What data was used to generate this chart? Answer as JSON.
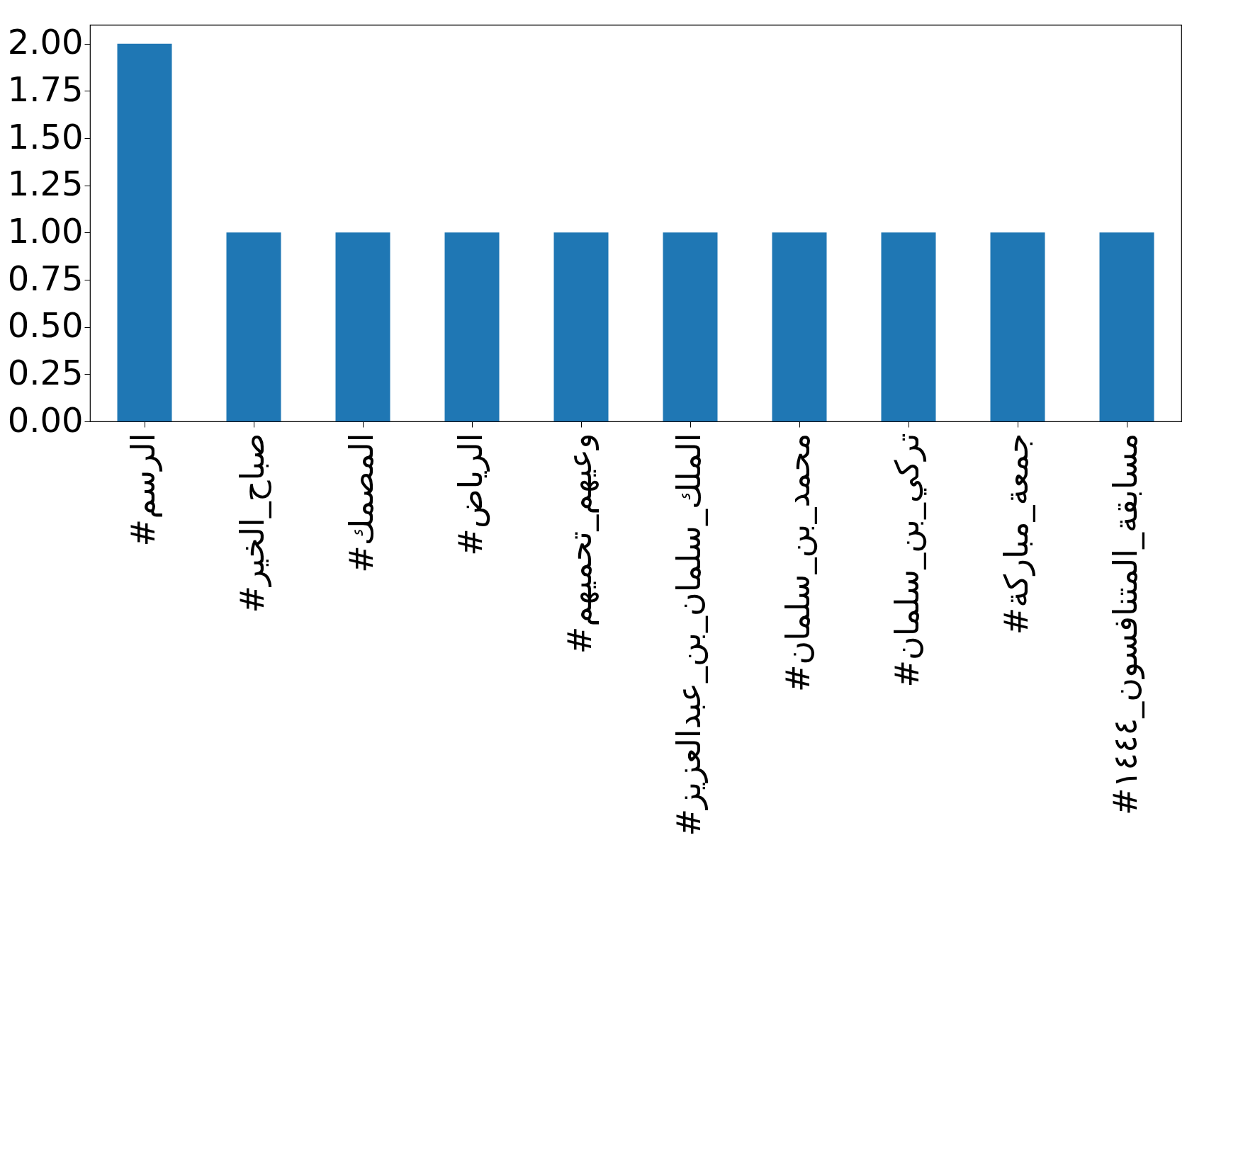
{
  "chart_data": {
    "type": "bar",
    "categories": [
      "#الرسم",
      "#صباح_الخير",
      "#المصمك",
      "#الرياض",
      "#وعيهم_تحميهم",
      "#الملك_سلمان_بن_عبدالعزيز",
      "#محمد_بن_سلمان",
      "#تركي_بن_سلمان",
      "#جمعة_مباركة",
      "#مسابقة_المتنافسون_١٤٤٤"
    ],
    "values": [
      2,
      1,
      1,
      1,
      1,
      1,
      1,
      1,
      1,
      1
    ],
    "color": "#1f77b4",
    "ylim": [
      0,
      2.1
    ],
    "yticks": [
      {
        "value": 0,
        "label": "0.00"
      },
      {
        "value": 0.25,
        "label": "0.25"
      },
      {
        "value": 0.5,
        "label": "0.50"
      },
      {
        "value": 0.75,
        "label": "0.75"
      },
      {
        "value": 1,
        "label": "1.00"
      },
      {
        "value": 1.25,
        "label": "1.25"
      },
      {
        "value": 1.5,
        "label": "1.50"
      },
      {
        "value": 1.75,
        "label": "1.75"
      },
      {
        "value": 2,
        "label": "2.00"
      }
    ],
    "grid": false
  }
}
